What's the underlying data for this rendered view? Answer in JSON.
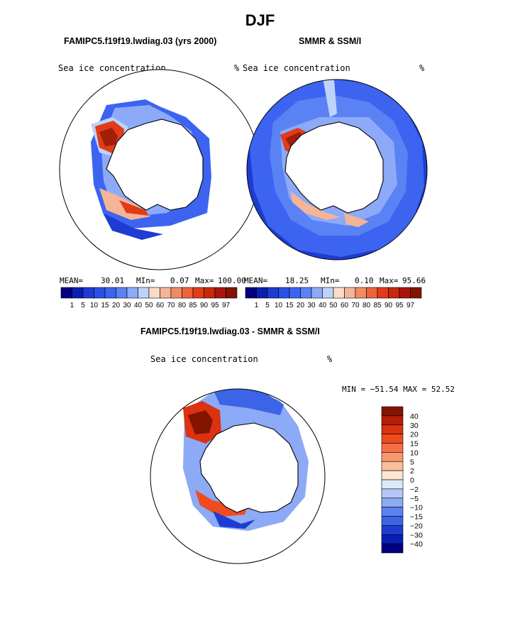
{
  "figure": {
    "season": "DJF",
    "panels": [
      {
        "title": "FAMIPC5.f19f19.lwdiag.03 (yrs 2000)",
        "variable": "Sea ice concentration",
        "units": "%",
        "stats": {
          "mean_label": "MEAN=",
          "mean": "30.01",
          "min_label": "MIn=",
          "min": "0.07",
          "max_label": "Max=",
          "max": "100.00"
        }
      },
      {
        "title": "SMMR & SSM/I",
        "variable": "Sea ice concentration",
        "units": "%",
        "stats": {
          "mean_label": "MEAN=",
          "mean": "18.25",
          "min_label": "MIn=",
          "min": "0.10",
          "max_label": "Max=",
          "max": "95.66"
        }
      }
    ],
    "difference_panel": {
      "title": "FAMIPC5.f19f19.lwdiag.03 - SMMR & SSM/I",
      "variable": "Sea ice concentration",
      "units": "%",
      "stats": "MIN = −51.54 MAX =  52.52"
    }
  },
  "chart_data": [
    {
      "type": "heatmap",
      "title": "FAMIPC5.f19f19.lwdiag.03 (yrs 2000)",
      "projection": "south polar stereographic",
      "mean": 30.01,
      "min": 0.07,
      "max": 100.0,
      "colorbar_levels": [
        1,
        5,
        10,
        15,
        20,
        30,
        40,
        50,
        60,
        70,
        80,
        85,
        90,
        95,
        97
      ],
      "colorbar_orientation": "horizontal"
    },
    {
      "type": "heatmap",
      "title": "SMMR & SSM/I",
      "projection": "south polar stereographic",
      "mean": 18.25,
      "min": 0.1,
      "max": 95.66,
      "colorbar_levels": [
        1,
        5,
        10,
        15,
        20,
        30,
        40,
        50,
        60,
        70,
        80,
        85,
        90,
        95,
        97
      ],
      "colorbar_orientation": "horizontal"
    },
    {
      "type": "heatmap",
      "title": "FAMIPC5.f19f19.lwdiag.03 - SMMR & SSM/I",
      "projection": "south polar stereographic",
      "min": -51.54,
      "max": 52.52,
      "colorbar_levels": [
        40,
        30,
        20,
        15,
        10,
        5,
        2,
        0,
        -2,
        -5,
        -10,
        -15,
        -20,
        -30,
        -40
      ],
      "colorbar_orientation": "vertical"
    }
  ],
  "colors": {
    "abs_scale": [
      "#000080",
      "#0a1eb4",
      "#1e3cd2",
      "#2850e6",
      "#3c64f0",
      "#5a82f5",
      "#8caaf8",
      "#bed2fa",
      "#fadcc8",
      "#f5b496",
      "#f08c64",
      "#eb643c",
      "#e13c19",
      "#c8280a",
      "#aa140a",
      "#821400"
    ],
    "diff_scale": [
      "#821400",
      "#b41e0a",
      "#dc320f",
      "#f04b1e",
      "#f56e46",
      "#f8966e",
      "#fbbe9b",
      "#fde6d2",
      "#dce8f8",
      "#b4c8f8",
      "#8caaf5",
      "#5a82f0",
      "#3c64e6",
      "#1e3cd2",
      "#0a1eb4",
      "#000080"
    ],
    "continent_fill": "#ffffff",
    "outline": "#000000"
  }
}
